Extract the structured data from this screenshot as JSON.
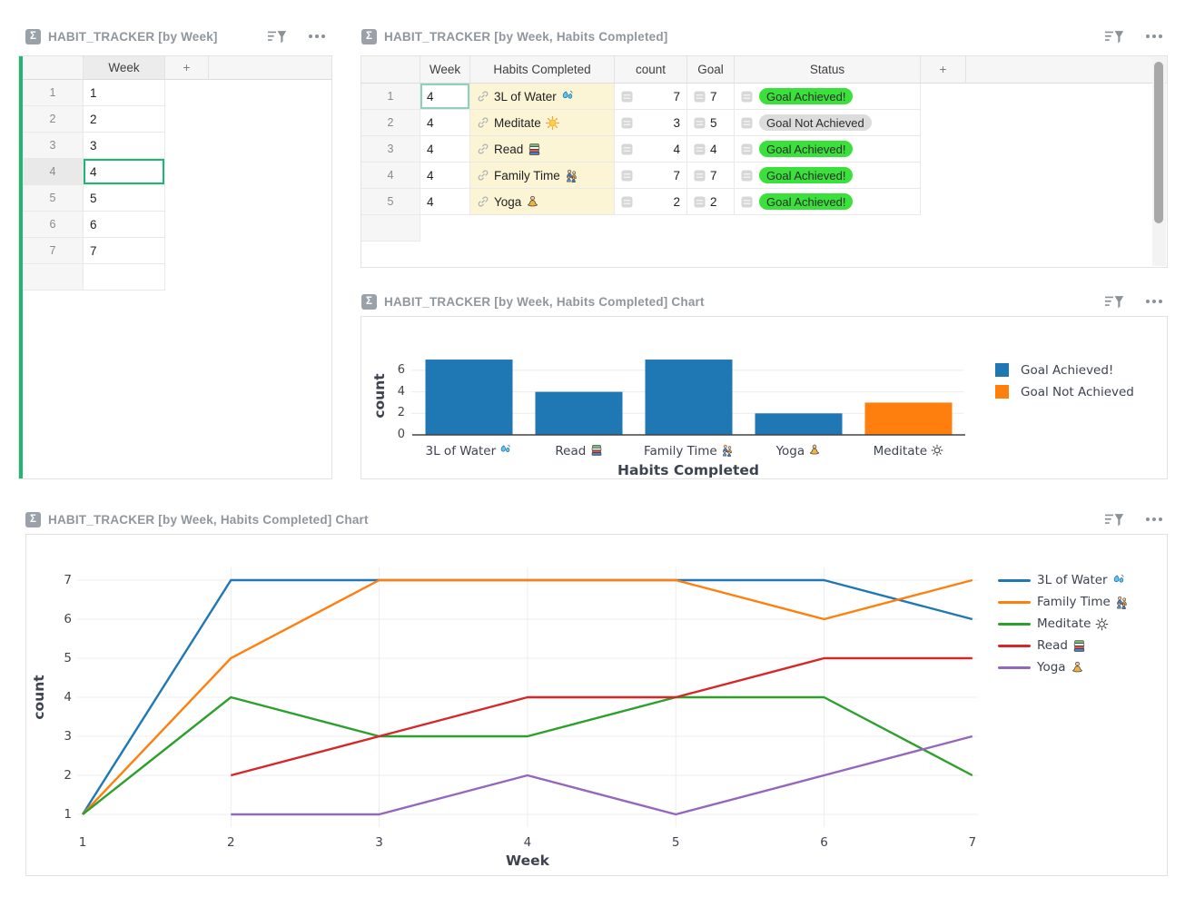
{
  "ui": {
    "accent_green": "#21b573",
    "linked_cell_bg": "#fbf5d6",
    "achieved_badge_bg": "#3ae13a",
    "not_achieved_badge_bg": "#dcdcdc",
    "sigma_icon": "sigma-icon",
    "filter_icon": "filter-sort-icon",
    "menu_icon": "ellipsis-menu-icon"
  },
  "panels": {
    "by_week": {
      "title": "HABIT_TRACKER [by Week]",
      "columns": {
        "week": "Week",
        "add": "+"
      },
      "rows": [
        {
          "num": "1",
          "week": "1",
          "selected": false
        },
        {
          "num": "2",
          "week": "2",
          "selected": false
        },
        {
          "num": "3",
          "week": "3",
          "selected": false
        },
        {
          "num": "4",
          "week": "4",
          "selected": true
        },
        {
          "num": "5",
          "week": "5",
          "selected": false
        },
        {
          "num": "6",
          "week": "6",
          "selected": false
        },
        {
          "num": "7",
          "week": "7",
          "selected": false
        }
      ]
    },
    "by_week_habits": {
      "title": "HABIT_TRACKER [by Week, Habits Completed]",
      "columns": {
        "week": "Week",
        "habits": "Habits Completed",
        "count": "count",
        "goal": "Goal",
        "status": "Status",
        "add": "+"
      },
      "rows": [
        {
          "num": "1",
          "week": "4",
          "habit": "3L of Water",
          "icon": "water",
          "count": "7",
          "goal": "7",
          "status": "Goal Achieved!",
          "status_type": "achieved",
          "cursor": true
        },
        {
          "num": "2",
          "week": "4",
          "habit": "Meditate",
          "icon": "sun",
          "count": "3",
          "goal": "5",
          "status": "Goal Not Achieved",
          "status_type": "not-achieved",
          "cursor": false
        },
        {
          "num": "3",
          "week": "4",
          "habit": "Read",
          "icon": "books",
          "count": "4",
          "goal": "4",
          "status": "Goal Achieved!",
          "status_type": "achieved",
          "cursor": false
        },
        {
          "num": "4",
          "week": "4",
          "habit": "Family Time",
          "icon": "family",
          "count": "7",
          "goal": "7",
          "status": "Goal Achieved!",
          "status_type": "achieved",
          "cursor": false
        },
        {
          "num": "5",
          "week": "4",
          "habit": "Yoga",
          "icon": "yoga",
          "count": "2",
          "goal": "2",
          "status": "Goal Achieved!",
          "status_type": "achieved",
          "cursor": false
        }
      ]
    },
    "bar_chart": {
      "title": "HABIT_TRACKER [by Week, Habits Completed] Chart"
    },
    "line_chart": {
      "title": "HABIT_TRACKER [by Week, Habits Completed] Chart"
    }
  },
  "chart_data": [
    {
      "type": "bar",
      "title": "",
      "xlabel": "Habits Completed",
      "ylabel": "count",
      "categories": [
        "3L of Water",
        "Read",
        "Family Time",
        "Yoga",
        "Meditate"
      ],
      "category_icons": [
        "water",
        "books",
        "family",
        "yoga",
        "sun-mono"
      ],
      "values": [
        7,
        4,
        7,
        2,
        3
      ],
      "bar_colors": [
        "#1f77b4",
        "#1f77b4",
        "#1f77b4",
        "#1f77b4",
        "#ff7f0e"
      ],
      "yticks": [
        0,
        2,
        4,
        6
      ],
      "ylim": [
        0,
        7.4
      ],
      "grid": true,
      "legend_position": "right",
      "legend": [
        {
          "label": "Goal Achieved!",
          "color": "#1f77b4"
        },
        {
          "label": "Goal Not Achieved",
          "color": "#ff7f0e"
        }
      ]
    },
    {
      "type": "line",
      "title": "",
      "xlabel": "Week",
      "ylabel": "count",
      "x": [
        1,
        2,
        3,
        4,
        5,
        6,
        7
      ],
      "xticks": [
        1,
        2,
        3,
        4,
        5,
        6,
        7
      ],
      "yticks": [
        1,
        2,
        3,
        4,
        5,
        6,
        7
      ],
      "ylim": [
        0.7,
        7.3
      ],
      "grid": true,
      "legend_position": "right",
      "series": [
        {
          "name": "3L of Water",
          "icon": "water",
          "color": "#1f77b4",
          "values": [
            1,
            7,
            7,
            7,
            7,
            7,
            6
          ]
        },
        {
          "name": "Family Time",
          "icon": "family",
          "color": "#ff7f0e",
          "values": [
            1,
            5,
            7,
            7,
            7,
            6,
            7
          ]
        },
        {
          "name": "Meditate",
          "icon": "sun-mono",
          "color": "#2ca02c",
          "values": [
            1,
            4,
            3,
            3,
            4,
            4,
            2
          ]
        },
        {
          "name": "Read",
          "icon": "books",
          "color": "#d62728",
          "values": [
            null,
            2,
            3,
            4,
            4,
            5,
            5
          ]
        },
        {
          "name": "Yoga",
          "icon": "yoga",
          "color": "#9467bd",
          "values": [
            null,
            1,
            1,
            2,
            1,
            2,
            3
          ]
        }
      ]
    }
  ]
}
